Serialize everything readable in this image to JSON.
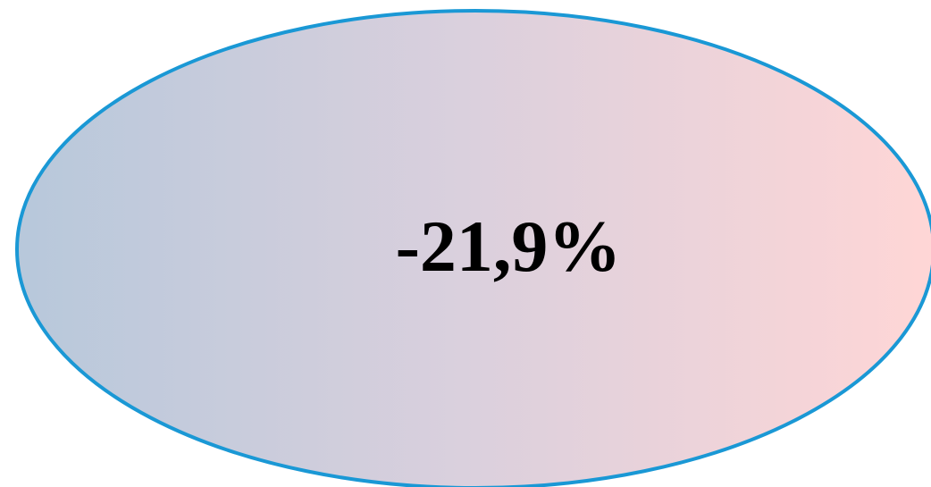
{
  "label": "-21,9%"
}
